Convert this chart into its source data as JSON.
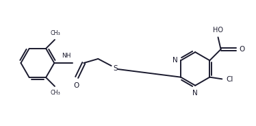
{
  "bg_color": "#ffffff",
  "line_color": "#1a1a2e",
  "line_width": 1.4,
  "figsize": [
    3.74,
    1.84
  ],
  "dpi": 100,
  "xlim": [
    0,
    11
  ],
  "ylim": [
    0,
    5.2
  ]
}
